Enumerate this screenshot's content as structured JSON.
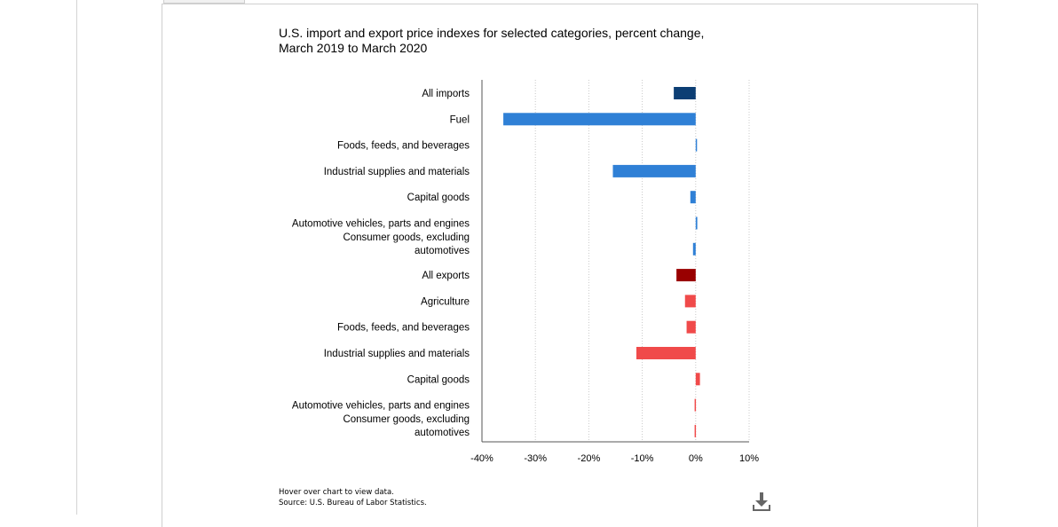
{
  "chart_data": {
    "type": "bar",
    "orientation": "horizontal",
    "title": "U.S. import and export price indexes for selected categories, percent change, March 2019 to March 2020",
    "title_lines": [
      "U.S. import and export price indexes for selected categories, percent change,",
      "March 2019 to March 2020"
    ],
    "xlabel": "",
    "ylabel": "",
    "xlim": [
      -40,
      10
    ],
    "xticks": [
      -40,
      -30,
      -20,
      -10,
      0,
      10
    ],
    "xtick_labels": [
      "-40%",
      "-30%",
      "-20%",
      "-10%",
      "0%",
      "10%"
    ],
    "grid": "vertical dotted",
    "categories": [
      "All imports",
      "Fuel",
      "Foods, feeds, and beverages",
      "Industrial supplies and materials",
      "Capital goods",
      "Automotive vehicles, parts and engines",
      "Consumer goods, excluding automotives",
      "All exports",
      "Agriculture",
      "Foods, feeds, and beverages",
      "Industrial supplies and materials",
      "Capital goods",
      "Automotive vehicles, parts and engines",
      "Consumer goods, excluding automotives"
    ],
    "category_label_lines": [
      [
        "All imports"
      ],
      [
        "Fuel"
      ],
      [
        "Foods, feeds, and beverages"
      ],
      [
        "Industrial supplies and materials"
      ],
      [
        "Capital goods"
      ],
      [
        "Automotive vehicles, parts and engines"
      ],
      [
        "Consumer goods, excluding",
        "automotives"
      ],
      [
        "All exports"
      ],
      [
        "Agriculture"
      ],
      [
        "Foods, feeds, and beverages"
      ],
      [
        "Industrial supplies and materials"
      ],
      [
        "Capital goods"
      ],
      [
        "Automotive vehicles, parts and engines"
      ],
      [
        "Consumer goods, excluding",
        "automotives"
      ]
    ],
    "values": [
      -4.1,
      -36.0,
      0.2,
      -15.5,
      -1.0,
      0.3,
      -0.5,
      -3.6,
      -2.0,
      -1.7,
      -11.1,
      0.8,
      -0.2,
      -0.2
    ],
    "colors": [
      "#0c3e74",
      "#2f80d6",
      "#2f80d6",
      "#2f80d6",
      "#2f80d6",
      "#2f80d6",
      "#2f80d6",
      "#990000",
      "#f04a4a",
      "#f04a4a",
      "#f04a4a",
      "#f04a4a",
      "#f04a4a",
      "#f04a4a"
    ]
  },
  "footnote": {
    "hint": "Hover over chart to view data.",
    "source": "Source: U.S. Bureau of Labor Statistics."
  },
  "download_icon": "download-icon"
}
